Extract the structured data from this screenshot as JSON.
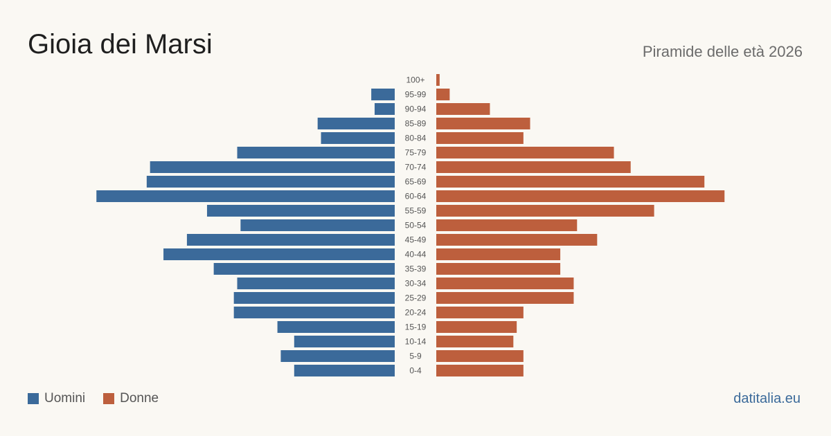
{
  "header": {
    "title": "Gioia dei Marsi",
    "subtitle": "Piramide delle età 2026"
  },
  "footer": {
    "brand": "datitalia.eu"
  },
  "colors": {
    "men": "#3b6a9a",
    "women": "#bd5f3d"
  },
  "chart_data": {
    "type": "bar",
    "orientation": "horizontal-pyramid",
    "categories": [
      "100+",
      "95-99",
      "90-94",
      "85-89",
      "80-84",
      "75-79",
      "70-74",
      "65-69",
      "60-64",
      "55-59",
      "50-54",
      "45-49",
      "40-44",
      "35-39",
      "30-34",
      "25-29",
      "20-24",
      "15-19",
      "10-14",
      "5-9",
      "0-4"
    ],
    "series": [
      {
        "name": "Uomini",
        "values": [
          0,
          7,
          6,
          23,
          22,
          47,
          73,
          74,
          89,
          56,
          46,
          62,
          69,
          54,
          47,
          48,
          48,
          35,
          30,
          34,
          30
        ]
      },
      {
        "name": "Donne",
        "values": [
          1,
          4,
          16,
          28,
          26,
          53,
          58,
          80,
          86,
          65,
          42,
          48,
          37,
          37,
          41,
          41,
          26,
          24,
          23,
          26,
          26
        ]
      }
    ],
    "legend_position": "bottom-left",
    "grid": false
  }
}
